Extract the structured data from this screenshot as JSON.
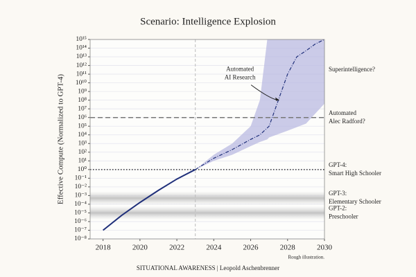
{
  "chart_data": {
    "type": "line",
    "title": "Scenario: Intelligence Explosion",
    "ylabel": "Effective Compute (Normalized to GPT-4)",
    "footnote": "Rough illustration.",
    "credit": "SITUATIONAL AWARENESS | Leopold Aschenbrenner",
    "log_y": true,
    "grid": true,
    "xlim": [
      2017.3,
      2030
    ],
    "xticks": [
      2018,
      2020,
      2022,
      2024,
      2026,
      2028,
      2030
    ],
    "ylim": [
      1e-08,
      1000000000000000.0
    ],
    "yticks": [
      {
        "value": 1e-08,
        "label": "10⁻⁸"
      },
      {
        "value": 1e-07,
        "label": "10⁻⁷"
      },
      {
        "value": 1e-06,
        "label": "10⁻⁶"
      },
      {
        "value": 1e-05,
        "label": "10⁻⁵"
      },
      {
        "value": 0.0001,
        "label": "10⁻⁴"
      },
      {
        "value": 0.001,
        "label": "10⁻³"
      },
      {
        "value": 0.01,
        "label": "10⁻²"
      },
      {
        "value": 0.1,
        "label": "10⁻¹"
      },
      {
        "value": 1,
        "label": "10⁰"
      },
      {
        "value": 10.0,
        "label": "10¹"
      },
      {
        "value": 100.0,
        "label": "10²"
      },
      {
        "value": 1000.0,
        "label": "10³"
      },
      {
        "value": 10000.0,
        "label": "10⁴"
      },
      {
        "value": 100000.0,
        "label": "10⁵"
      },
      {
        "value": 1000000.0,
        "label": "10⁶"
      },
      {
        "value": 10000000.0,
        "label": "10⁷"
      },
      {
        "value": 100000000.0,
        "label": "10⁸"
      },
      {
        "value": 1000000000.0,
        "label": "10⁹"
      },
      {
        "value": 10000000000.0,
        "label": "10¹⁰"
      },
      {
        "value": 100000000000.0,
        "label": "10¹¹"
      },
      {
        "value": 1000000000000.0,
        "label": "10¹²"
      },
      {
        "value": 10000000000000.0,
        "label": "10¹³"
      },
      {
        "value": 100000000000000.0,
        "label": "10¹⁴"
      },
      {
        "value": 1000000000000000.0,
        "label": "10¹⁵"
      }
    ],
    "series": [
      {
        "color": "#1f2f7a",
        "style": "solid",
        "x": [
          2018,
          2019,
          2020,
          2021,
          2022,
          2023
        ],
        "values": [
          1e-07,
          5e-06,
          0.00016,
          0.004,
          0.08,
          1
        ]
      },
      {
        "color": "#1f2f7a",
        "style": "dashdot",
        "x": [
          2023,
          2024,
          2025,
          2026,
          2026.5,
          2027,
          2027.5,
          2028,
          2028.5,
          2029,
          2029.5,
          2030
        ],
        "values": [
          1,
          20,
          200,
          3000,
          10000.0,
          100000.0,
          100000000.0,
          100000000000.0,
          10000000000000.0,
          50000000000000.0,
          300000000000000.0,
          1000000000000000.0
        ]
      }
    ],
    "band": {
      "color": "#b9b9e2",
      "x": [
        2023,
        2024,
        2025,
        2026,
        2026.5,
        2026.9,
        2027,
        2028,
        2029,
        2030
      ],
      "lower": [
        1,
        10,
        50,
        500,
        1500,
        3000,
        5000,
        30000.0,
        200000.0,
        40000000.0
      ],
      "upper": [
        1,
        50,
        1000,
        100000.0,
        100000000.0,
        1000000000000000.0,
        1000000000000000.0,
        1000000000000000.0,
        1000000000000000.0,
        1000000000000000.0
      ]
    },
    "vline_x": 2023,
    "levels": [
      {
        "label": [
          "Superintelligence?"
        ],
        "value": 300000000000.0,
        "style": "none"
      },
      {
        "label": [
          "Automated",
          "Alec Radford?"
        ],
        "value": 1000000.0,
        "style": "dashed"
      },
      {
        "label": [
          "GPT-4:",
          "Smart High Schooler"
        ],
        "value": 1,
        "style": "dotted"
      },
      {
        "label": [
          "GPT-3:",
          "Elementary Schooler"
        ],
        "value": 0.0005,
        "style": "shaded"
      },
      {
        "label": [
          "GPT-2:",
          "Preschooler"
        ],
        "value": 1e-05,
        "style": "shaded"
      }
    ],
    "annotation": {
      "text": [
        "Automated",
        "AI Research"
      ],
      "x": 2027.6,
      "y": 100000000.0
    }
  }
}
